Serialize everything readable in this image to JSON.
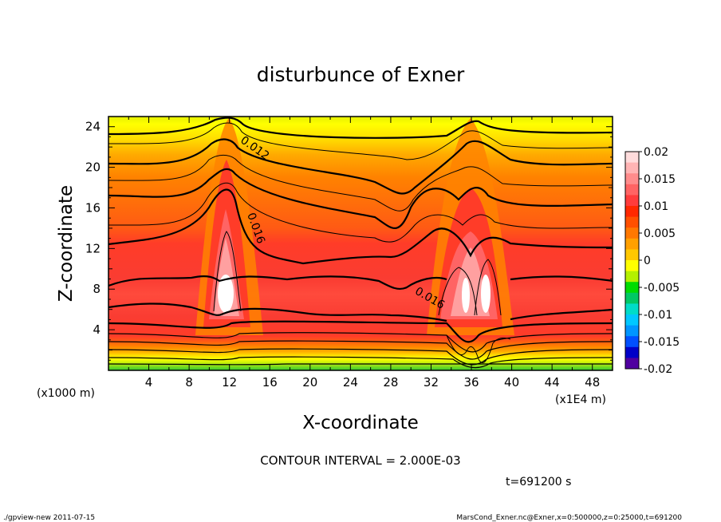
{
  "chart_data": {
    "type": "heatmap",
    "title": "disturbunce of Exner",
    "xlabel": "X-coordinate",
    "ylabel": "Z-coordinate",
    "x_unit": "(x1E4 m)",
    "y_unit": "(x1000 m)",
    "xlim": [
      0,
      50
    ],
    "ylim": [
      0,
      25
    ],
    "x_ticks": [
      "4",
      "8",
      "12",
      "16",
      "20",
      "24",
      "28",
      "32",
      "36",
      "40",
      "44",
      "48"
    ],
    "y_ticks": [
      "4",
      "8",
      "12",
      "16",
      "20",
      "24"
    ],
    "contour_interval_text": "CONTOUR INTERVAL = 2.000E-03",
    "contour_labels": [
      {
        "text": "0.012",
        "x": 13.5,
        "z": 21.5
      },
      {
        "text": "0.016",
        "x": 13.0,
        "z": 14.5
      },
      {
        "text": "0.016",
        "x": 31.5,
        "z": 6.5
      }
    ],
    "colorbar": {
      "labels": [
        "0.02",
        "0.015",
        "0.01",
        "0.005",
        "0",
        "-0.005",
        "-0.01",
        "-0.015",
        "-0.02"
      ],
      "min": -0.02,
      "max": 0.02
    },
    "time_text": "t=691200 s"
  },
  "footer": {
    "left": "./gpview-new   2011-07-15",
    "right": "MarsCond_Exner.nc@Exner,x=0:500000,z=0:25000,t=691200"
  }
}
